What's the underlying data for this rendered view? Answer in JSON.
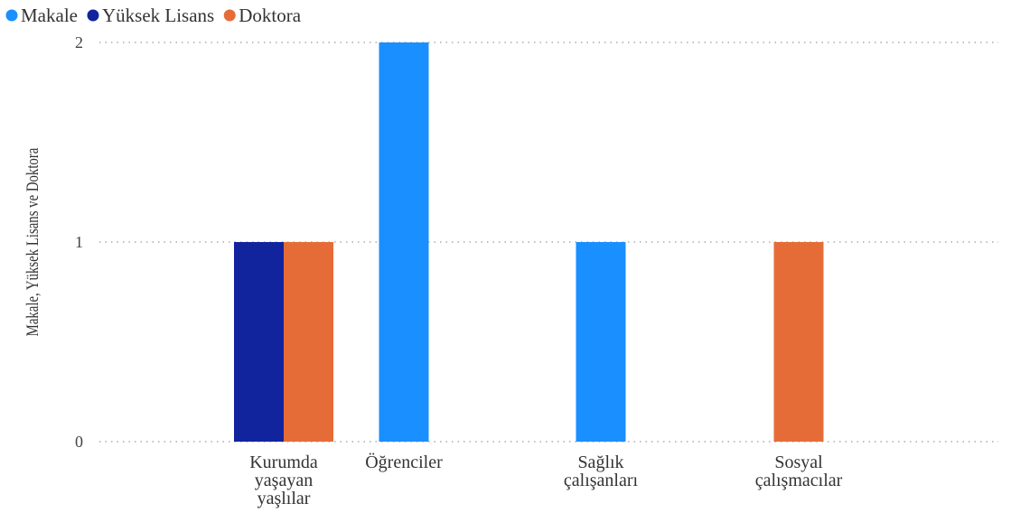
{
  "chart_data": {
    "type": "bar",
    "categories": [
      [
        "Kurumda",
        "yaşayan",
        "yaşlılar"
      ],
      [
        "Öğrenciler"
      ],
      [
        "Sağlık",
        "çalışanları"
      ],
      [
        "Sosyal",
        "çalışmacılar"
      ]
    ],
    "series": [
      {
        "name": "Makale",
        "color": "#1a8fff",
        "values": [
          0,
          2,
          1,
          0
        ]
      },
      {
        "name": "Yüksek Lisans",
        "color": "#12239e",
        "values": [
          1,
          0,
          0,
          0
        ]
      },
      {
        "name": "Doktora",
        "color": "#e66c37",
        "values": [
          1,
          0,
          0,
          1
        ]
      }
    ],
    "ylabel": "Makale, Yüksek Lisans ve Doktora",
    "yticks": [
      "0",
      "1",
      "2"
    ],
    "ylim": [
      0,
      2
    ],
    "grid": true,
    "legend_position": "top-left"
  }
}
